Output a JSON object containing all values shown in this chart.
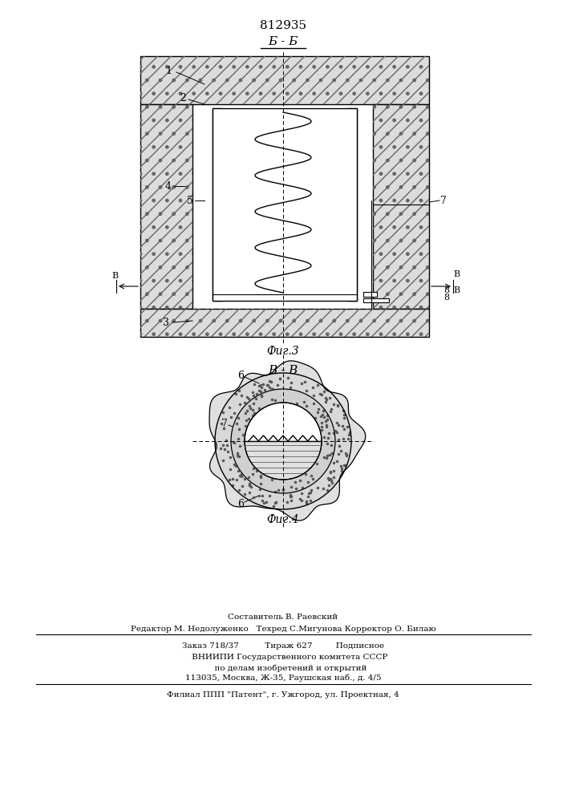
{
  "patent_number": "812935",
  "fig3_label": "Б - Б",
  "fig4_label": "В - В",
  "fig3_caption": "Фиг.3",
  "fig4_caption": "Фиг.4",
  "line_color": "#000000",
  "bg_color": "#ffffff",
  "hatch_light": "#e8e8e8",
  "hatch_medium": "#d0d0d0",
  "footer_line0": "Составитель В. Раевский",
  "footer_line1": "Редактор М. Недолуженко   Техред С.Мигунова Корректор О. Билаю",
  "footer_line2": "Заказ 718/37          Тираж 627         Подписное",
  "footer_line3": "     ВНИИПИ Государственного комитета СССР",
  "footer_line4": "      по делам изобретений и открытий",
  "footer_line5": "113035, Москва, Ж-35, Раушская наб., д. 4/5",
  "footer_line6": "Филиал ППП \"Патент\", г. Ужгород, ул. Проектная, 4"
}
